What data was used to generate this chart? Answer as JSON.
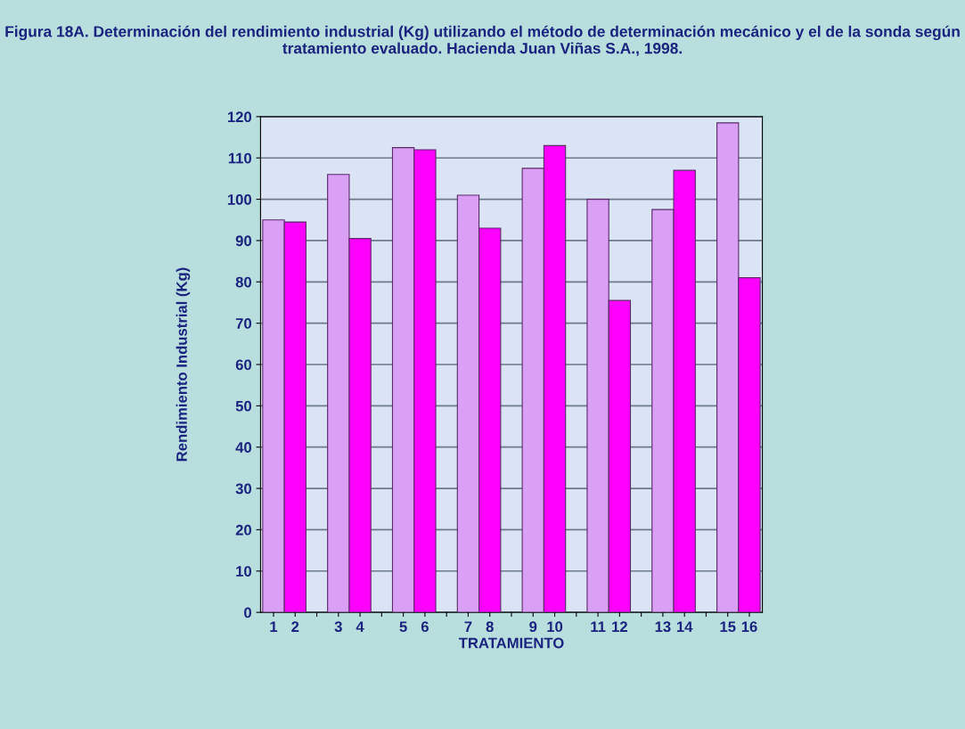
{
  "chart_data": {
    "type": "bar",
    "title": "Figura 18A. Determinación del rendimiento industrial (Kg) utilizando el método de determinación mecánico y el de la sonda según tratamiento evaluado. Hacienda Juan Viñas S.A., 1998.",
    "xlabel": "TRATAMIENTO",
    "ylabel": "Rendimiento Industrial (Kg)",
    "categories": [
      "1",
      "2",
      null,
      "3",
      "4",
      null,
      "5",
      "6",
      null,
      "7",
      "8",
      null,
      "9",
      "10",
      null,
      "11",
      "12",
      null,
      "13",
      "14",
      null,
      "15",
      "16"
    ],
    "values": [
      95,
      94.5,
      null,
      106,
      90.5,
      null,
      112.5,
      112,
      null,
      101,
      93,
      null,
      107.5,
      113,
      null,
      100,
      75.5,
      null,
      97.5,
      107,
      null,
      118.5,
      81
    ],
    "colors": [
      "#d9a0f5",
      "#ff00ff",
      null,
      "#d9a0f5",
      "#ff00ff",
      null,
      "#d9a0f5",
      "#ff00ff",
      null,
      "#d9a0f5",
      "#ff00ff",
      null,
      "#d9a0f5",
      "#ff00ff",
      null,
      "#d9a0f5",
      "#ff00ff",
      null,
      "#d9a0f5",
      "#ff00ff",
      null,
      "#d9a0f5",
      "#ff00ff"
    ],
    "ylim": [
      0,
      120
    ],
    "yticks": [
      0,
      10,
      20,
      30,
      40,
      50,
      60,
      70,
      80,
      90,
      100,
      110,
      120
    ],
    "grid": "y",
    "legend": false
  }
}
